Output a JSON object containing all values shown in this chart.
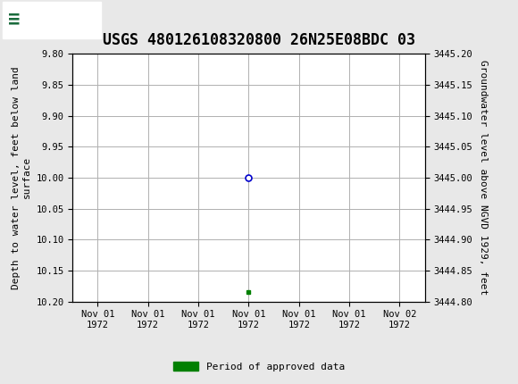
{
  "title": "USGS 480126108320800 26N25E08BDC 03",
  "ylabel_left": "Depth to water level, feet below land\nsurface",
  "ylabel_right": "Groundwater level above NGVD 1929, feet",
  "ylim_left": [
    10.2,
    9.8
  ],
  "ylim_right": [
    3444.8,
    3445.2
  ],
  "yticks_left": [
    9.8,
    9.85,
    9.9,
    9.95,
    10.0,
    10.05,
    10.1,
    10.15,
    10.2
  ],
  "yticks_right": [
    3444.8,
    3444.85,
    3444.9,
    3444.95,
    3445.0,
    3445.05,
    3445.1,
    3445.15,
    3445.2
  ],
  "data_point_x": 3,
  "data_point_y": 10.0,
  "green_bar_x": 3,
  "green_bar_y": 10.185,
  "xtick_positions": [
    0,
    1,
    2,
    3,
    4,
    5,
    6
  ],
  "xtick_labels": [
    "Nov 01\n1972",
    "Nov 01\n1972",
    "Nov 01\n1972",
    "Nov 01\n1972",
    "Nov 01\n1972",
    "Nov 01\n1972",
    "Nov 02\n1972"
  ],
  "xlim": [
    -0.5,
    6.5
  ],
  "header_color": "#1a6b3c",
  "background_color": "#e8e8e8",
  "plot_bg_color": "#ffffff",
  "grid_color": "#b0b0b0",
  "title_fontsize": 12,
  "axis_label_fontsize": 8,
  "tick_fontsize": 7.5,
  "legend_label": "Period of approved data",
  "legend_color": "#008000",
  "point_color": "#0000cc",
  "point_size": 5
}
